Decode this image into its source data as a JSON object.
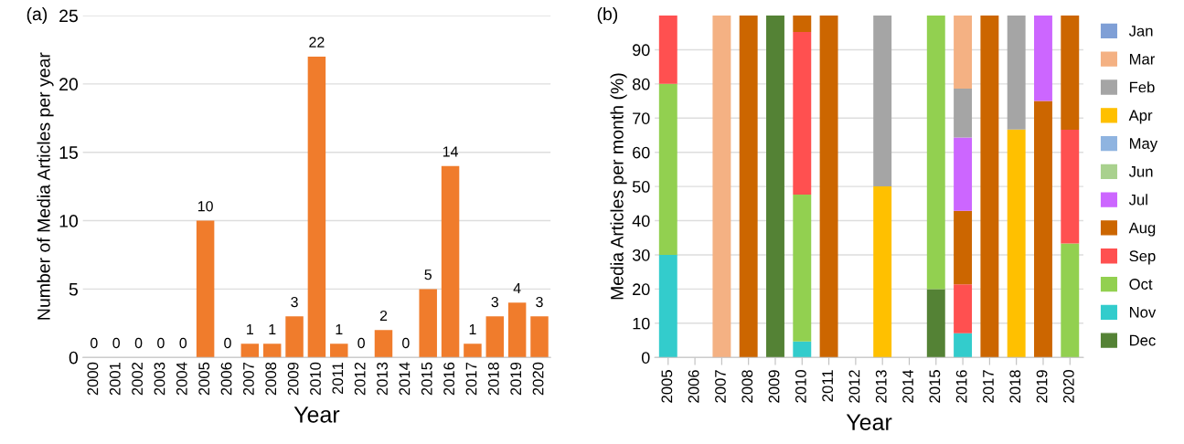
{
  "chart_data": [
    {
      "type": "bar",
      "annotations": [
        "(a)"
      ],
      "xlabel": "Year",
      "ylabel": "Number of Media Articles per year",
      "categories": [
        "2000",
        "2001",
        "2002",
        "2003",
        "2004",
        "2005",
        "2006",
        "2007",
        "2008",
        "2009",
        "2010",
        "2011",
        "2012",
        "2013",
        "2014",
        "2015",
        "2016",
        "2017",
        "2018",
        "2019",
        "2020"
      ],
      "values": [
        0,
        0,
        0,
        0,
        0,
        10,
        0,
        1,
        1,
        3,
        22,
        1,
        0,
        2,
        0,
        5,
        14,
        1,
        3,
        4,
        3
      ],
      "color": "#f07c2c",
      "data_labels": true,
      "ylim": [
        0,
        25
      ],
      "yticks": [
        0,
        5,
        10,
        15,
        20,
        25
      ],
      "grid": "y",
      "legend": false
    },
    {
      "type": "bar",
      "stacked": true,
      "annotations": [
        "(b)"
      ],
      "xlabel": "Year",
      "ylabel": "Media Articles per month (%)",
      "categories": [
        "2005",
        "2006",
        "2007",
        "2008",
        "2009",
        "2010",
        "2011",
        "2012",
        "2013",
        "2014",
        "2015",
        "2016",
        "2017",
        "2018",
        "2019",
        "2020"
      ],
      "series": [
        {
          "name": "Dec",
          "color": "#548235",
          "values": [
            0,
            0,
            0,
            0,
            100,
            0,
            0,
            0,
            0,
            0,
            20,
            0,
            0,
            0,
            0,
            0
          ]
        },
        {
          "name": "Nov",
          "color": "#33cccc",
          "values": [
            30,
            0,
            0,
            0,
            0,
            4.7,
            0,
            0,
            0,
            0,
            0,
            7.1,
            0,
            0,
            0,
            0
          ]
        },
        {
          "name": "Oct",
          "color": "#92d050",
          "values": [
            50,
            0,
            0,
            0,
            0,
            42.9,
            0,
            0,
            0,
            0,
            80,
            0,
            0,
            0,
            0,
            33.3
          ]
        },
        {
          "name": "Sep",
          "color": "#ff5050",
          "values": [
            20,
            0,
            0,
            0,
            0,
            47.6,
            0,
            0,
            0,
            0,
            0,
            14.3,
            0,
            0,
            0,
            33.3
          ]
        },
        {
          "name": "Aug",
          "color": "#cc6600",
          "values": [
            0,
            0,
            0,
            100,
            0,
            4.8,
            100,
            0,
            0,
            0,
            0,
            21.5,
            100,
            0,
            75,
            33.4
          ]
        },
        {
          "name": "Jul",
          "color": "#cc66ff",
          "values": [
            0,
            0,
            0,
            0,
            0,
            0,
            0,
            0,
            0,
            0,
            0,
            21.4,
            0,
            0,
            25,
            0
          ]
        },
        {
          "name": "Jun",
          "color": "#a9d18e",
          "values": [
            0,
            0,
            0,
            0,
            0,
            0,
            0,
            0,
            0,
            0,
            0,
            0,
            0,
            0,
            0,
            0
          ]
        },
        {
          "name": "May",
          "color": "#8fb4e0",
          "values": [
            0,
            0,
            0,
            0,
            0,
            0,
            0,
            0,
            0,
            0,
            0,
            0,
            0,
            0,
            0,
            0
          ]
        },
        {
          "name": "Apr",
          "color": "#ffc000",
          "values": [
            0,
            0,
            0,
            0,
            0,
            0,
            0,
            0,
            50,
            0,
            0,
            0,
            0,
            66.7,
            0,
            0
          ]
        },
        {
          "name": "Feb",
          "color": "#a5a5a5",
          "values": [
            0,
            0,
            0,
            0,
            0,
            0,
            0,
            0,
            50,
            0,
            0,
            14.3,
            0,
            33.3,
            0,
            0
          ]
        },
        {
          "name": "Mar",
          "color": "#f4b183",
          "values": [
            0,
            0,
            100,
            0,
            0,
            0,
            0,
            0,
            0,
            0,
            0,
            21.4,
            0,
            0,
            0,
            0
          ]
        },
        {
          "name": "Jan",
          "color": "#7f9fd6",
          "values": [
            0,
            0,
            0,
            0,
            0,
            0,
            0,
            0,
            0,
            0,
            0,
            0,
            0,
            0,
            0,
            0
          ]
        }
      ],
      "ylim": [
        0,
        100
      ],
      "yticks": [
        0,
        10,
        20,
        30,
        40,
        50,
        60,
        70,
        80,
        90
      ],
      "grid": "y",
      "legend": "right"
    }
  ]
}
